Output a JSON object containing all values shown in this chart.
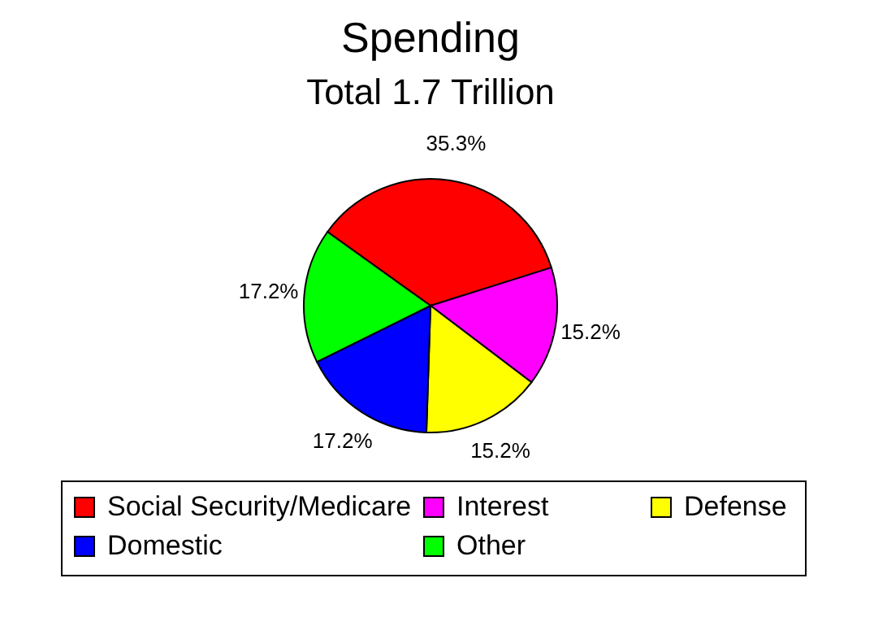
{
  "chart_data": {
    "type": "pie",
    "title": "Spending",
    "subtitle": "Total 1.7 Trillion",
    "categories": [
      "Social Security/Medicare",
      "Interest",
      "Defense",
      "Domestic",
      "Other"
    ],
    "values": [
      35.3,
      15.2,
      15.2,
      17.2,
      17.2
    ],
    "colors": [
      "#ff0000",
      "#ff00ff",
      "#ffff00",
      "#0000ff",
      "#00ff00"
    ],
    "value_labels": [
      "35.3%",
      "15.2%",
      "15.2%",
      "17.2%",
      "17.2%"
    ],
    "legend": "bottom"
  }
}
